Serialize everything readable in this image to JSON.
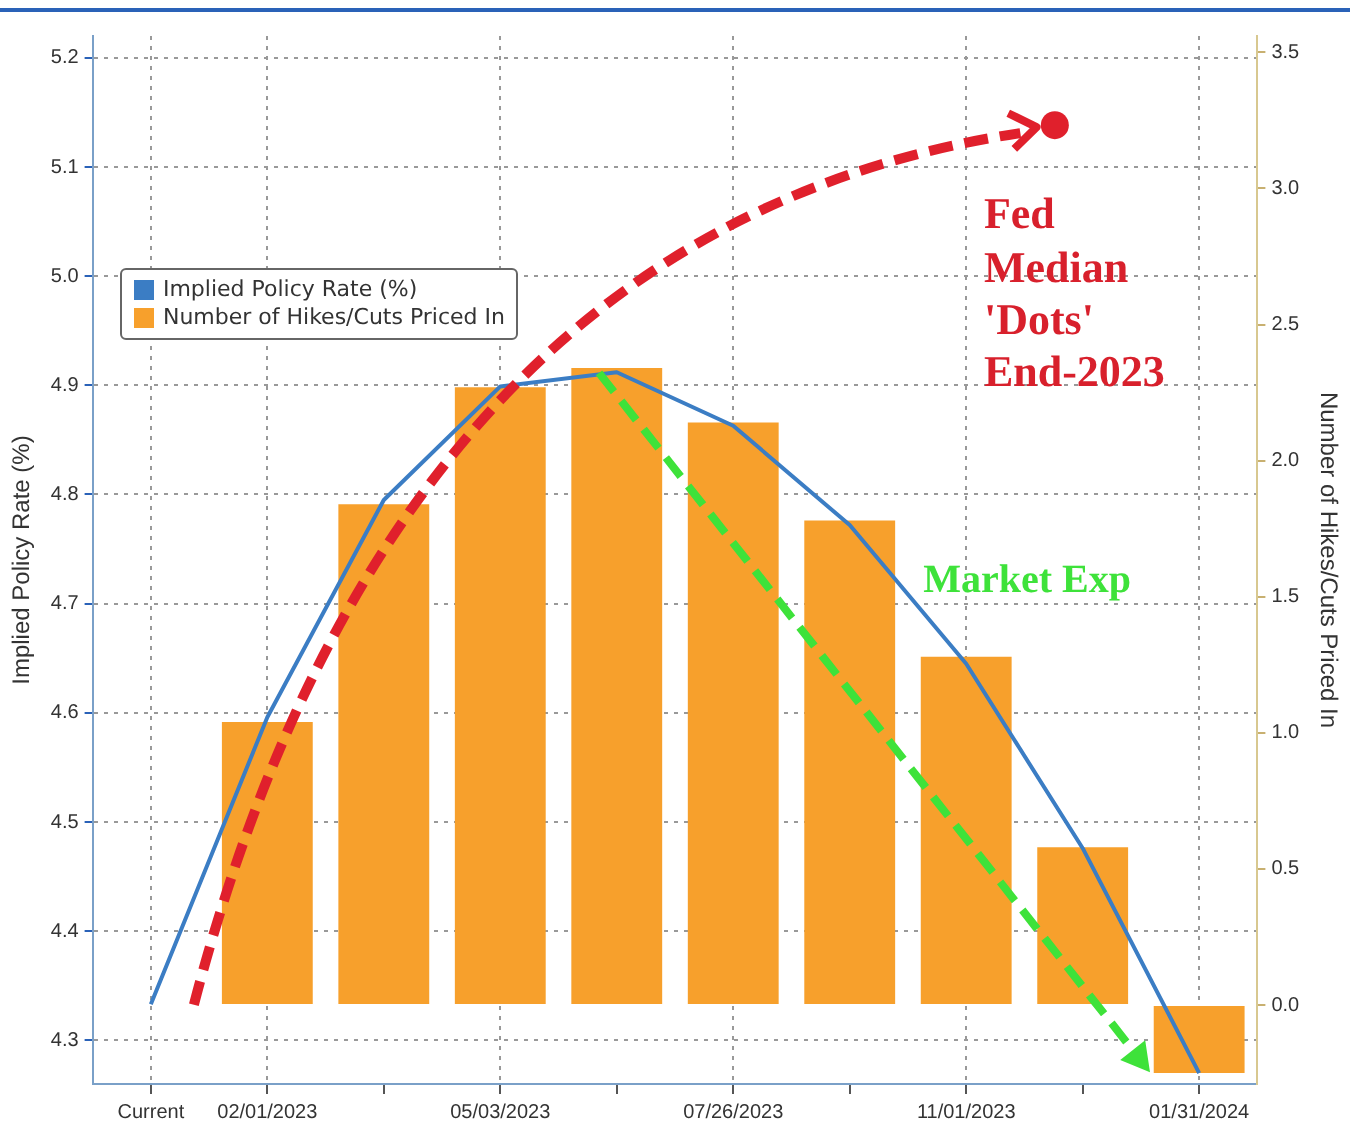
{
  "chart_data": {
    "type": "bar",
    "categories": [
      "Current",
      "02/01/2023",
      null,
      "05/03/2023",
      null,
      "07/26/2023",
      null,
      "11/01/2023",
      null,
      "01/31/2024"
    ],
    "series": [
      {
        "name": "Implied Policy Rate (%)",
        "type": "line",
        "color": "#3b7dc4",
        "values": [
          4.333,
          4.596,
          4.795,
          4.899,
          4.912,
          4.863,
          4.772,
          4.645,
          4.476,
          4.27
        ]
      },
      {
        "name": "Number of Hikes/Cuts Priced In",
        "type": "bar",
        "axis": "y2",
        "color": "#f7a02c",
        "values": [
          0,
          1.04,
          1.84,
          2.27,
          2.34,
          2.14,
          1.78,
          1.28,
          0.58,
          -0.25
        ]
      }
    ],
    "ylabel": "Implied Policy Rate (%)",
    "y2label": "Number of Hikes/Cuts Priced In",
    "ylim": [
      4.26,
      5.22
    ],
    "yticks": [
      4.3,
      4.4,
      4.5,
      4.6,
      4.7,
      4.8,
      4.9,
      {
        "value": 5,
        "label": "5.0"
      },
      5.1,
      5.2
    ],
    "y2lim": [
      -0.29,
      3.56
    ],
    "y2ticks": [
      {
        "value": 0,
        "label": "0.0"
      },
      0.5,
      {
        "value": 1,
        "label": "1.0"
      },
      1.5,
      {
        "value": 2,
        "label": "2.0"
      },
      2.5,
      {
        "value": 3,
        "label": "3.0"
      },
      3.5
    ],
    "legend": "top left",
    "grid": true,
    "marker": "none",
    "annotations": [
      "Fed\nMedian\n'Dots'\nEnd-2023",
      "Market Exp"
    ]
  }
}
